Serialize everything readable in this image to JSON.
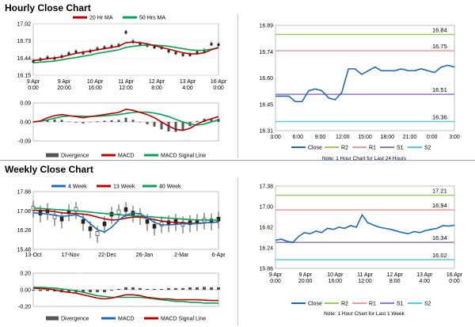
{
  "titles": {
    "hourly": "Hourly Close Chart",
    "weekly": "Weekly Close Chart"
  },
  "colors": {
    "ma_short": "#c00000",
    "ma_long": "#00a651",
    "close_blue": "#1f6cb5",
    "r2": "#9ccc65",
    "r1": "#ef9a9a",
    "s1": "#9575cd",
    "s2": "#4dd0e1",
    "divergence": "#555555"
  },
  "chart_data": [
    {
      "id": "hourly_price",
      "type": "line",
      "legend": [
        "20 Hr MA",
        "50 Hrs MA"
      ],
      "y_ticks": [
        "17.02",
        "16.73",
        "16.44",
        "16.15"
      ],
      "ylim": [
        16.15,
        17.02
      ],
      "x_ticks": [
        "9 Apr\n0:00",
        "9 Apr\n20:00",
        "10 Apr\n16:00",
        "11 Apr\n12:00",
        "12 Apr\n8:00",
        "13 Apr\n4:00",
        "16 Apr\n0:00"
      ],
      "series": [
        {
          "name": "Close",
          "values": [
            16.39,
            16.42,
            16.45,
            16.44,
            16.47,
            16.52,
            16.55,
            16.53,
            16.56,
            16.6,
            16.62,
            16.64,
            16.66,
            16.88,
            16.72,
            16.68,
            16.66,
            16.63,
            16.62,
            16.56,
            16.53,
            16.5,
            16.5,
            16.54,
            16.57,
            16.68,
            16.67
          ]
        },
        {
          "name": "20 Hr MA",
          "values": [
            16.4,
            16.41,
            16.43,
            16.44,
            16.46,
            16.49,
            16.52,
            16.54,
            16.56,
            16.58,
            16.6,
            16.62,
            16.64,
            16.7,
            16.71,
            16.7,
            16.68,
            16.65,
            16.62,
            16.59,
            16.56,
            16.53,
            16.51,
            16.51,
            16.53,
            16.58,
            16.62
          ]
        },
        {
          "name": "50 Hrs MA",
          "values": [
            16.36,
            16.37,
            16.38,
            16.39,
            16.41,
            16.43,
            16.45,
            16.47,
            16.49,
            16.52,
            16.54,
            16.56,
            16.58,
            16.62,
            16.64,
            16.65,
            16.66,
            16.66,
            16.65,
            16.64,
            16.62,
            16.6,
            16.58,
            16.57,
            16.57,
            16.59,
            16.61
          ]
        }
      ]
    },
    {
      "id": "hourly_macd",
      "type": "line",
      "legend": [
        "Divergence",
        "MACD",
        "MACD Signal Line"
      ],
      "y_ticks": [
        "0.09",
        "0.00",
        "-0.09"
      ],
      "ylim": [
        -0.09,
        0.09
      ],
      "macd": [
        0.0,
        0.005,
        0.02,
        0.03,
        0.035,
        0.03,
        0.025,
        0.02,
        0.025,
        0.03,
        0.035,
        0.04,
        0.045,
        0.06,
        0.055,
        0.045,
        0.035,
        0.02,
        0.0,
        -0.02,
        -0.035,
        -0.04,
        -0.03,
        -0.01,
        0.005,
        0.015,
        0.025
      ],
      "signal": [
        0.0,
        0.003,
        0.01,
        0.018,
        0.025,
        0.028,
        0.028,
        0.027,
        0.026,
        0.027,
        0.029,
        0.032,
        0.035,
        0.04,
        0.045,
        0.047,
        0.046,
        0.042,
        0.035,
        0.025,
        0.012,
        0.0,
        -0.01,
        -0.015,
        -0.01,
        0.0,
        0.01
      ]
    },
    {
      "id": "hourly_24h",
      "type": "line",
      "y_ticks": [
        "16.89",
        "16.74",
        "16.60",
        "16.45",
        "16.31"
      ],
      "ylim": [
        16.31,
        16.89
      ],
      "x_ticks": [
        "3:00",
        "6:00",
        "9:00",
        "12:00",
        "15:00",
        "18:00",
        "21:00",
        "0:00",
        "3:00"
      ],
      "levels": [
        {
          "name": "R2",
          "value": 16.84,
          "label": "16.84"
        },
        {
          "name": "R1",
          "value": 16.75,
          "label": "16.75"
        },
        {
          "name": "S1",
          "value": 16.51,
          "label": "16.51"
        },
        {
          "name": "S2",
          "value": 16.36,
          "label": "16.36"
        }
      ],
      "values": [
        16.5,
        16.5,
        16.5,
        16.47,
        16.47,
        16.53,
        16.54,
        16.53,
        16.49,
        16.48,
        16.52,
        16.65,
        16.65,
        16.62,
        16.64,
        16.66,
        16.64,
        16.64,
        16.64,
        16.65,
        16.64,
        16.64,
        16.65,
        16.64,
        16.63,
        16.66,
        16.67,
        16.66
      ],
      "legend": [
        "Close",
        "R2",
        "R1",
        "S1",
        "S2"
      ],
      "note": "Note: 1 Hour Chart for Last 24 Hours"
    },
    {
      "id": "weekly_price",
      "type": "line",
      "legend": [
        "4 Week",
        "13 Week",
        "40 Week"
      ],
      "y_ticks": [
        "17.88",
        "17.08",
        "16.28",
        "15.48"
      ],
      "ylim": [
        15.48,
        17.88
      ],
      "x_ticks": [
        "13-Oct",
        "17-Nov",
        "22-Dec",
        "26-Jan",
        "2-Mar",
        "6-Apr"
      ],
      "series": [
        {
          "name": "Close",
          "values": [
            17.15,
            16.95,
            17.05,
            16.8,
            16.7,
            17.0,
            17.1,
            16.6,
            16.3,
            16.1,
            16.5,
            16.9,
            17.0,
            17.1,
            16.95,
            16.85,
            16.6,
            16.4,
            16.5,
            16.55,
            16.6,
            16.5,
            16.55,
            16.6,
            16.65,
            16.62,
            16.7
          ]
        },
        {
          "name": "4 Week",
          "values": [
            17.0,
            16.98,
            16.95,
            16.9,
            16.85,
            16.88,
            16.92,
            16.8,
            16.55,
            16.3,
            16.2,
            16.4,
            16.7,
            16.9,
            17.0,
            16.95,
            16.8,
            16.6,
            16.5,
            16.5,
            16.52,
            16.55,
            16.54,
            16.55,
            16.58,
            16.6,
            16.62
          ]
        },
        {
          "name": "13 Week",
          "values": [
            17.1,
            17.1,
            17.08,
            17.05,
            17.0,
            16.98,
            16.97,
            16.95,
            16.9,
            16.82,
            16.75,
            16.7,
            16.72,
            16.78,
            16.82,
            16.82,
            16.78,
            16.72,
            16.66,
            16.62,
            16.6,
            16.58,
            16.57,
            16.56,
            16.58,
            16.6,
            16.62
          ]
        },
        {
          "name": "40 Week",
          "values": [
            17.2,
            17.18,
            17.16,
            17.14,
            17.12,
            17.1,
            17.08,
            17.06,
            17.03,
            17.0,
            16.97,
            16.94,
            16.92,
            16.9,
            16.88,
            16.86,
            16.84,
            16.82,
            16.8,
            16.78,
            16.76,
            16.74,
            16.72,
            16.7,
            16.7,
            16.7,
            16.7
          ]
        }
      ]
    },
    {
      "id": "weekly_macd",
      "type": "line",
      "legend": [
        "Divergence",
        "MACD",
        "MACD Signal Line"
      ],
      "y_ticks": [
        "0.20",
        "0.00",
        "-0.20"
      ],
      "ylim": [
        -0.2,
        0.2
      ],
      "macd": [
        0.02,
        0.015,
        0.01,
        0.0,
        -0.02,
        -0.03,
        -0.04,
        -0.06,
        -0.08,
        -0.1,
        -0.11,
        -0.1,
        -0.08,
        -0.06,
        -0.06,
        -0.07,
        -0.09,
        -0.1,
        -0.11,
        -0.11,
        -0.12,
        -0.12,
        -0.12,
        -0.12,
        -0.125,
        -0.13,
        -0.13
      ],
      "signal": [
        0.03,
        0.03,
        0.025,
        0.02,
        0.01,
        0.0,
        -0.01,
        -0.03,
        -0.05,
        -0.07,
        -0.08,
        -0.09,
        -0.09,
        -0.09,
        -0.09,
        -0.09,
        -0.1,
        -0.11,
        -0.12,
        -0.13,
        -0.14,
        -0.14,
        -0.15,
        -0.15,
        -0.16,
        -0.16,
        -0.16
      ]
    },
    {
      "id": "weekly_1w",
      "type": "line",
      "y_ticks": [
        "17.38",
        "17.00",
        "16.62",
        "16.24",
        "15.86"
      ],
      "ylim": [
        15.86,
        17.38
      ],
      "x_ticks": [
        "9 Apr\n0:00",
        "9 Apr\n20:00",
        "10 Apr\n16:00",
        "11 Apr\n12:00",
        "12 Apr\n8:00",
        "13 Apr\n4:00",
        "16 Apr\n0:00"
      ],
      "levels": [
        {
          "name": "R2",
          "value": 17.21,
          "label": "17.21"
        },
        {
          "name": "R1",
          "value": 16.94,
          "label": "16.94"
        },
        {
          "name": "S1",
          "value": 16.34,
          "label": "16.34"
        },
        {
          "name": "S2",
          "value": 16.02,
          "label": "16.02"
        }
      ],
      "values": [
        16.38,
        16.4,
        16.36,
        16.34,
        16.45,
        16.52,
        16.5,
        16.55,
        16.52,
        16.6,
        16.58,
        16.62,
        16.6,
        16.65,
        16.62,
        16.85,
        16.7,
        16.66,
        16.62,
        16.6,
        16.58,
        16.55,
        16.52,
        16.5,
        16.54,
        16.52,
        16.56,
        16.58,
        16.6,
        16.65,
        16.64,
        16.66
      ],
      "legend": [
        "Close",
        "R2",
        "R1",
        "S1",
        "S2"
      ],
      "note": "Note: 1 Hour Chart for Last 1 Week"
    }
  ]
}
